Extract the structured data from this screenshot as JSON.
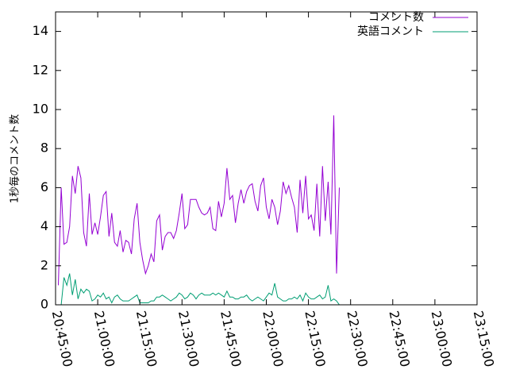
{
  "chart_data": {
    "type": "line",
    "title": "",
    "xlabel": "",
    "ylabel": "1秒毎のコメント数",
    "xlim": [
      "20:45:00",
      "23:15:00"
    ],
    "ylim": [
      0,
      15
    ],
    "grid": false,
    "legend": {
      "position": "top-right"
    },
    "x_ticks": [
      "20:45:00",
      "21:00:00",
      "21:15:00",
      "21:30:00",
      "21:45:00",
      "22:00:00",
      "22:15:00",
      "22:30:00",
      "22:45:00",
      "23:00:00",
      "23:15:00"
    ],
    "y_ticks": [
      "0",
      "2",
      "4",
      "6",
      "8",
      "10",
      "12",
      "14"
    ],
    "sample_interval_seconds": 60,
    "series": [
      {
        "name": "コメント数",
        "color": "#9400d3",
        "start": "20:46:00",
        "values": [
          1.0,
          6.0,
          3.1,
          3.2,
          4.0,
          6.6,
          5.7,
          7.1,
          6.5,
          3.7,
          3.0,
          5.7,
          3.6,
          4.2,
          3.6,
          4.5,
          5.6,
          5.8,
          3.5,
          4.7,
          3.2,
          3.0,
          3.8,
          2.7,
          3.3,
          3.2,
          2.6,
          4.4,
          5.2,
          3.2,
          2.3,
          1.6,
          2.0,
          2.6,
          2.2,
          4.3,
          4.6,
          2.8,
          3.5,
          3.7,
          3.7,
          3.4,
          3.8,
          4.7,
          5.7,
          3.9,
          4.1,
          5.4,
          5.4,
          5.4,
          5.0,
          4.7,
          4.6,
          4.7,
          5.0,
          3.9,
          3.8,
          5.3,
          4.5,
          5.2,
          7.0,
          5.4,
          5.6,
          4.2,
          5.2,
          5.9,
          5.2,
          5.8,
          6.1,
          6.2,
          5.3,
          4.8,
          6.1,
          6.5,
          5.0,
          4.4,
          5.4,
          5.0,
          4.1,
          4.8,
          6.3,
          5.7,
          6.1,
          5.5,
          5.0,
          3.7,
          6.4,
          4.7,
          6.6,
          4.4,
          4.6,
          3.8,
          6.2,
          3.5,
          7.1,
          4.3,
          6.3,
          3.6,
          9.7,
          1.6,
          6.0
        ]
      },
      {
        "name": "英語コメント",
        "color": "#009e73",
        "start": "20:46:00",
        "values": [
          0,
          0,
          1.4,
          1.0,
          1.6,
          0.5,
          1.3,
          0.3,
          0.8,
          0.6,
          0.8,
          0.7,
          0.2,
          0.3,
          0.5,
          0.4,
          0.6,
          0.3,
          0.4,
          0.1,
          0.4,
          0.5,
          0.3,
          0.2,
          0.2,
          0.2,
          0.3,
          0.4,
          0.5,
          0.1,
          0.1,
          0.1,
          0.1,
          0.2,
          0.2,
          0.4,
          0.4,
          0.5,
          0.4,
          0.3,
          0.2,
          0.3,
          0.4,
          0.6,
          0.5,
          0.3,
          0.4,
          0.6,
          0.5,
          0.3,
          0.5,
          0.6,
          0.5,
          0.5,
          0.5,
          0.6,
          0.5,
          0.6,
          0.5,
          0.4,
          0.7,
          0.4,
          0.4,
          0.3,
          0.3,
          0.4,
          0.4,
          0.5,
          0.3,
          0.2,
          0.3,
          0.4,
          0.3,
          0.2,
          0.4,
          0.6,
          0.5,
          1.1,
          0.4,
          0.3,
          0.2,
          0.2,
          0.3,
          0.3,
          0.4,
          0.3,
          0.5,
          0.2,
          0.6,
          0.4,
          0.3,
          0.3,
          0.4,
          0.5,
          0.3,
          0.4,
          1.0,
          0.2,
          0.3,
          0.2,
          0.0
        ]
      }
    ]
  }
}
